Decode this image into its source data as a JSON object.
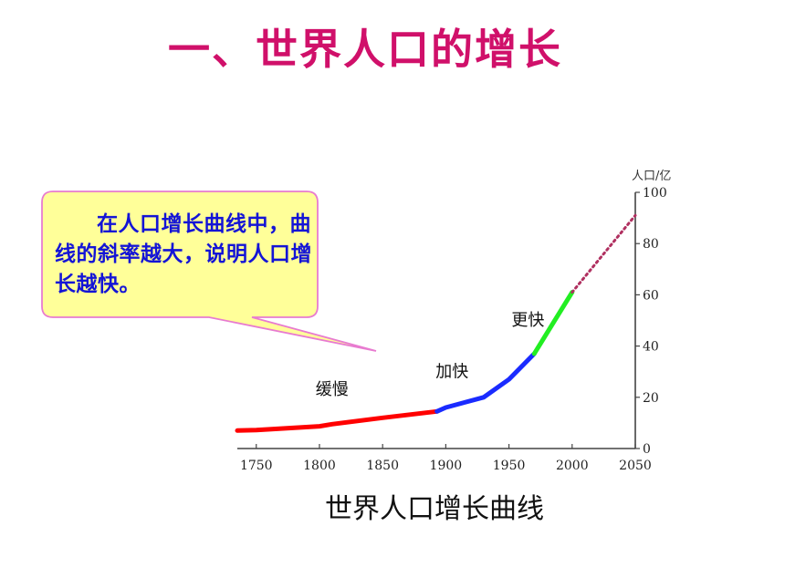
{
  "slide": {
    "title": "一、世界人口的增长",
    "callout": "在人口增长曲线中，曲线的斜率越大，说明人口增长越快。"
  },
  "colors": {
    "title": "#d0106a",
    "callout_fill": "#ffff99",
    "callout_border": "#e87bd0",
    "callout_text": "#1414d6",
    "slow": "#ff0000",
    "faster": "#1a2bff",
    "fastest": "#22ee22",
    "projection": "#b03060",
    "axis": "#444444"
  },
  "chart_data": {
    "type": "line",
    "title": "世界人口增长曲线",
    "ylabel": "人口/亿",
    "xlim": [
      1735,
      2050
    ],
    "ylim": [
      0,
      100
    ],
    "x_ticks": [
      1750,
      1800,
      1850,
      1900,
      1950,
      2000,
      2050
    ],
    "y_ticks": [
      0,
      20,
      40,
      60,
      80,
      100
    ],
    "series": [
      {
        "name": "缓慢",
        "color": "#ff0000",
        "x": [
          1735,
          1750,
          1800,
          1810,
          1850,
          1893
        ],
        "y": [
          7,
          7.2,
          8.7,
          9.5,
          12,
          14.5
        ]
      },
      {
        "name": "加快",
        "color": "#1a2bff",
        "x": [
          1893,
          1900,
          1930,
          1950,
          1970
        ],
        "y": [
          14.5,
          16,
          20,
          27,
          37
        ]
      },
      {
        "name": "更快",
        "color": "#22ee22",
        "x": [
          1970,
          1985,
          2000
        ],
        "y": [
          37,
          49,
          61
        ]
      },
      {
        "name": "",
        "color": "#b03060",
        "dashed": true,
        "x": [
          2000,
          2025,
          2050
        ],
        "y": [
          61,
          76,
          91
        ]
      }
    ],
    "annotations": [
      {
        "text": "缓慢",
        "x": 1810,
        "y": 21
      },
      {
        "text": "加快",
        "x": 1905,
        "y": 28
      },
      {
        "text": "更快",
        "x": 1965,
        "y": 48
      }
    ]
  }
}
